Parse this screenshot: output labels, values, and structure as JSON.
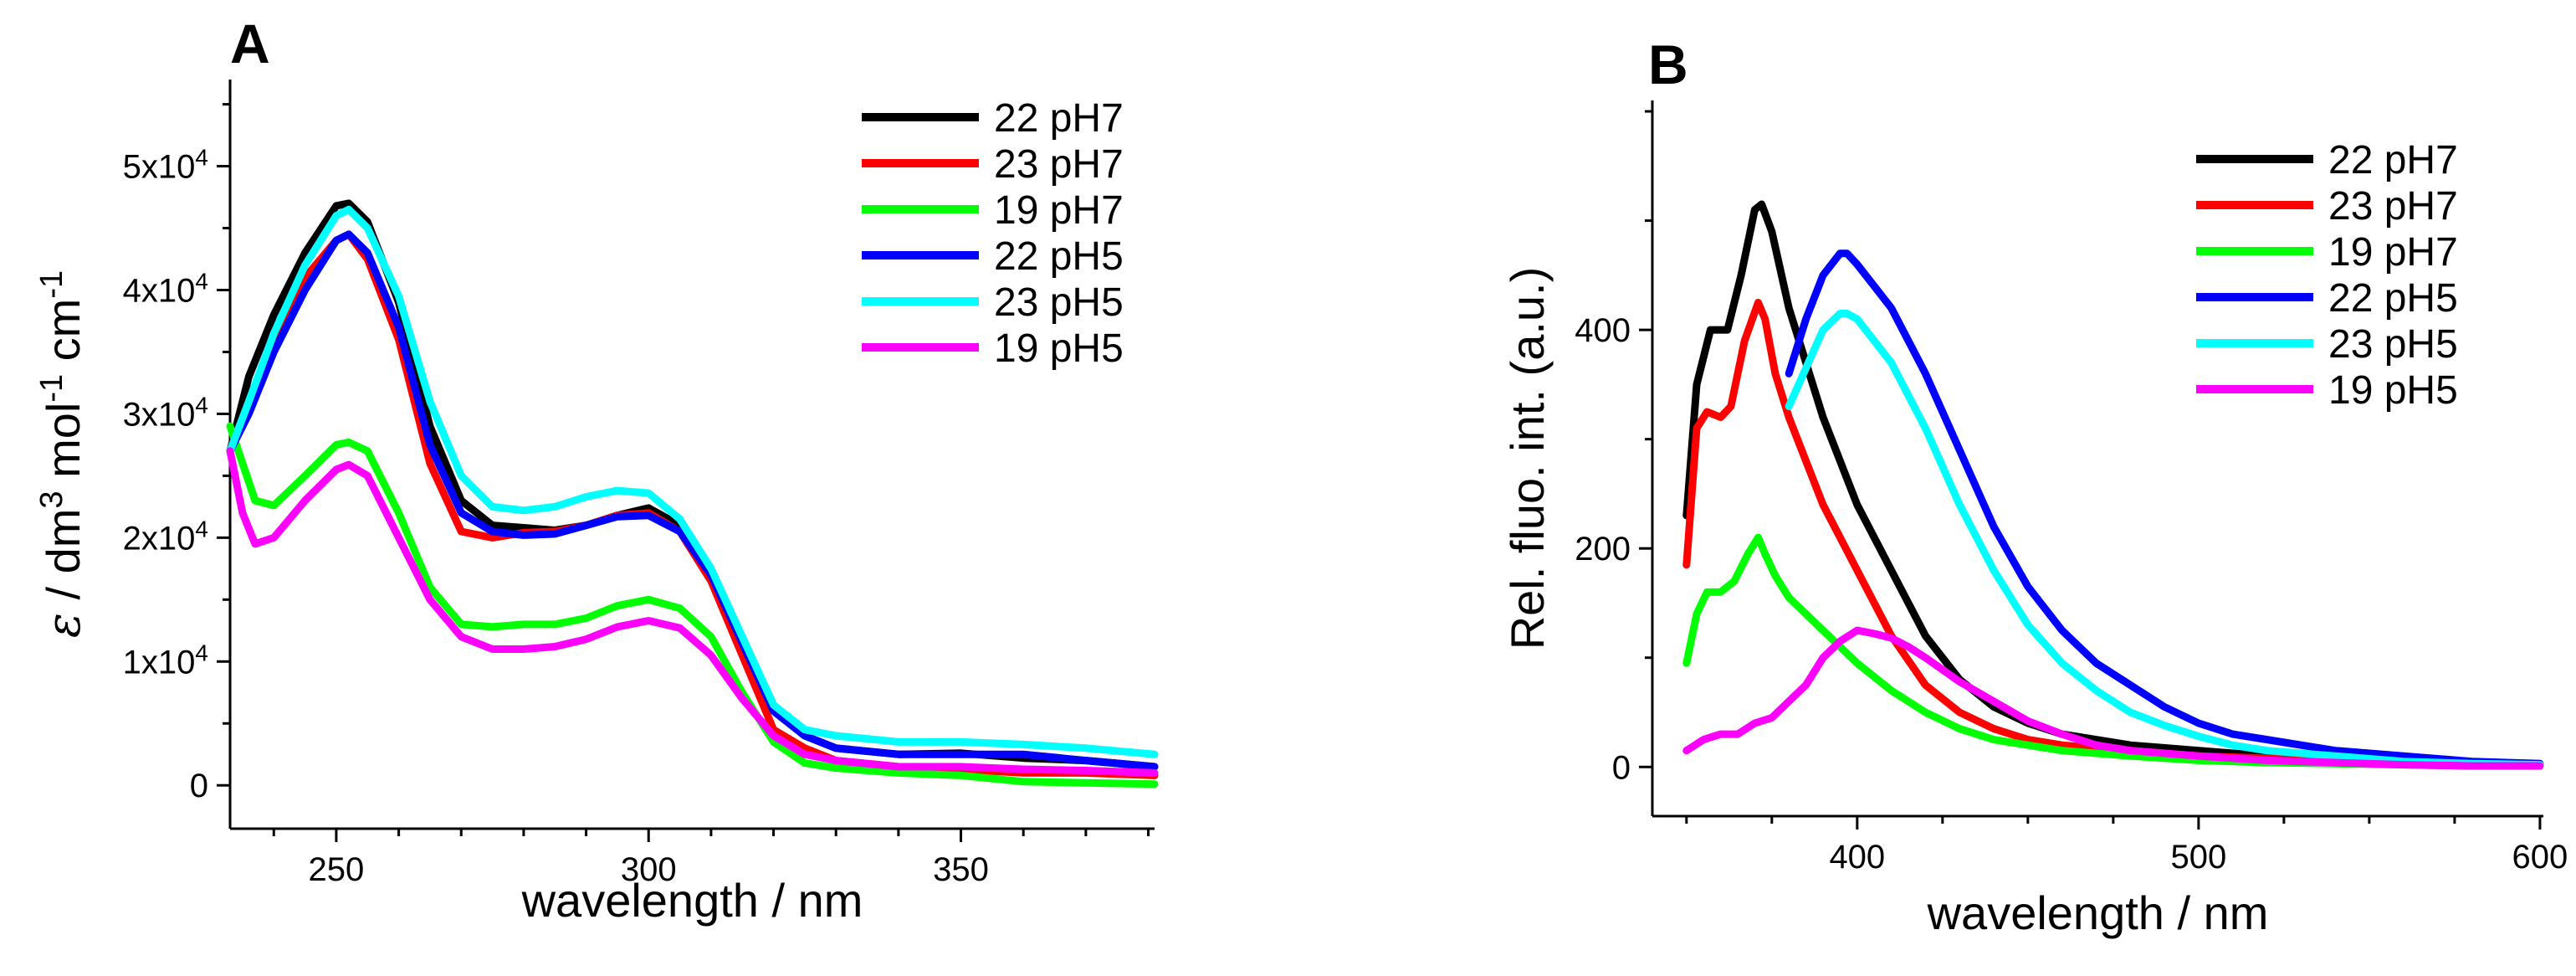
{
  "chart_data": [
    {
      "id": "A",
      "type": "line",
      "panel_label": "A",
      "xlabel": "wavelength / nm",
      "ylabel_parts": [
        "ε",
        " / dm",
        "3",
        " mol",
        "-1",
        " cm",
        "-1"
      ],
      "xlim": [
        233,
        381
      ],
      "ylim": [
        -3500,
        57000
      ],
      "xticks": [
        250,
        300,
        350
      ],
      "yticks": [
        {
          "value": 0,
          "label": "0"
        },
        {
          "value": 10000,
          "label": "1x10",
          "sup": "4"
        },
        {
          "value": 20000,
          "label": "2x10",
          "sup": "4"
        },
        {
          "value": 30000,
          "label": "3x10",
          "sup": "4"
        },
        {
          "value": 40000,
          "label": "4x10",
          "sup": "4"
        },
        {
          "value": 50000,
          "label": "5x10",
          "sup": "4"
        }
      ],
      "legend_position": "top-right",
      "series": [
        {
          "name": "22 pH7",
          "color": "#000000",
          "x": [
            233,
            236,
            240,
            245,
            250,
            252,
            255,
            260,
            265,
            270,
            275,
            280,
            285,
            290,
            295,
            300,
            305,
            310,
            315,
            320,
            325,
            330,
            340,
            350,
            360,
            370,
            381
          ],
          "y": [
            27000,
            33000,
            38000,
            43000,
            46800,
            47000,
            45500,
            39000,
            29000,
            23000,
            21000,
            20800,
            20600,
            21000,
            21800,
            22400,
            21000,
            17000,
            11500,
            6000,
            4000,
            3000,
            2500,
            2600,
            2200,
            2000,
            1500
          ]
        },
        {
          "name": "23 pH7",
          "color": "#ff0000",
          "x": [
            233,
            236,
            240,
            245,
            250,
            252,
            255,
            260,
            265,
            270,
            275,
            280,
            285,
            290,
            295,
            300,
            305,
            310,
            315,
            320,
            325,
            330,
            340,
            350,
            360,
            370,
            381
          ],
          "y": [
            27000,
            31000,
            36000,
            41000,
            44000,
            44500,
            42500,
            36000,
            26000,
            20500,
            20000,
            20400,
            20500,
            21000,
            21800,
            22000,
            20500,
            16500,
            10500,
            4500,
            3000,
            2000,
            1500,
            1300,
            1000,
            1000,
            800
          ]
        },
        {
          "name": "19 pH7",
          "color": "#00ff00",
          "x": [
            233,
            235,
            237,
            240,
            245,
            250,
            252,
            255,
            260,
            265,
            270,
            275,
            280,
            285,
            290,
            295,
            300,
            305,
            310,
            315,
            320,
            325,
            330,
            340,
            350,
            360,
            370,
            381
          ],
          "y": [
            29000,
            26000,
            23000,
            22600,
            25000,
            27500,
            27700,
            27000,
            22000,
            16000,
            13000,
            12800,
            13000,
            13000,
            13500,
            14500,
            15000,
            14300,
            12000,
            7500,
            3500,
            1800,
            1400,
            1000,
            800,
            300,
            200,
            100
          ]
        },
        {
          "name": "22 pH5",
          "color": "#0000ff",
          "x": [
            233,
            236,
            240,
            245,
            250,
            252,
            255,
            260,
            265,
            270,
            275,
            280,
            285,
            290,
            295,
            300,
            305,
            310,
            315,
            320,
            325,
            330,
            340,
            350,
            360,
            370,
            381
          ],
          "y": [
            27000,
            30000,
            35000,
            40000,
            44000,
            44500,
            43000,
            37000,
            27500,
            22000,
            20500,
            20200,
            20300,
            21000,
            21700,
            21800,
            20500,
            17000,
            11500,
            6000,
            4000,
            3000,
            2500,
            2500,
            2500,
            2000,
            1500
          ]
        },
        {
          "name": "23 pH5",
          "color": "#00ffff",
          "x": [
            233,
            236,
            240,
            245,
            250,
            252,
            255,
            260,
            265,
            270,
            275,
            280,
            285,
            290,
            295,
            300,
            305,
            310,
            315,
            320,
            325,
            330,
            340,
            350,
            360,
            370,
            381
          ],
          "y": [
            27000,
            31000,
            36500,
            42000,
            46000,
            46500,
            45000,
            39500,
            31000,
            25000,
            22500,
            22200,
            22500,
            23300,
            23800,
            23600,
            21500,
            17500,
            12000,
            6500,
            4500,
            4000,
            3500,
            3500,
            3300,
            3000,
            2500
          ]
        },
        {
          "name": "19 pH5",
          "color": "#ff00ff",
          "x": [
            233,
            235,
            237,
            240,
            245,
            250,
            252,
            255,
            260,
            265,
            270,
            275,
            280,
            285,
            290,
            295,
            300,
            305,
            310,
            315,
            320,
            325,
            330,
            340,
            350,
            360,
            370,
            381
          ],
          "y": [
            27000,
            22000,
            19500,
            20000,
            23000,
            25500,
            25900,
            25000,
            20000,
            15000,
            12000,
            11000,
            11000,
            11200,
            11800,
            12800,
            13300,
            12700,
            10500,
            7000,
            4000,
            2500,
            2000,
            1500,
            1500,
            1300,
            1200,
            1000
          ]
        }
      ]
    },
    {
      "id": "B",
      "type": "line",
      "panel_label": "B",
      "xlabel": "wavelength / nm",
      "ylabel": "Rel. fluo. int. (a.u.)",
      "xlim": [
        340,
        601
      ],
      "ylim": [
        -45,
        610
      ],
      "xticks": [
        400,
        500,
        600
      ],
      "yticks": [
        {
          "value": 0,
          "label": "0"
        },
        {
          "value": 200,
          "label": "200"
        },
        {
          "value": 400,
          "label": "400"
        }
      ],
      "legend_position": "top-right",
      "series": [
        {
          "name": "22 pH7",
          "color": "#000000",
          "x": [
            350,
            353,
            357,
            362,
            366,
            370,
            372,
            375,
            380,
            385,
            390,
            395,
            400,
            410,
            420,
            430,
            440,
            450,
            460,
            480,
            500,
            520,
            540,
            560,
            580,
            600
          ],
          "y": [
            230,
            350,
            400,
            400,
            450,
            510,
            515,
            490,
            420,
            370,
            320,
            280,
            240,
            180,
            120,
            80,
            55,
            40,
            30,
            20,
            15,
            10,
            8,
            5,
            3,
            2
          ]
        },
        {
          "name": "23 pH7",
          "color": "#ff0000",
          "x": [
            350,
            353,
            356,
            360,
            363,
            367,
            371,
            373,
            376,
            380,
            385,
            390,
            395,
            400,
            410,
            420,
            430,
            440,
            450,
            460,
            480,
            500,
            520,
            540,
            560,
            580,
            600
          ],
          "y": [
            185,
            310,
            325,
            320,
            330,
            390,
            425,
            410,
            360,
            320,
            280,
            240,
            210,
            180,
            120,
            75,
            50,
            35,
            25,
            20,
            15,
            10,
            8,
            5,
            3,
            2,
            1
          ]
        },
        {
          "name": "19 pH7",
          "color": "#00ff00",
          "x": [
            350,
            353,
            356,
            360,
            364,
            368,
            371,
            373,
            376,
            380,
            385,
            390,
            395,
            400,
            410,
            420,
            430,
            440,
            450,
            460,
            480,
            500,
            520,
            540,
            560,
            580,
            600
          ],
          "y": [
            95,
            140,
            160,
            160,
            170,
            195,
            210,
            195,
            175,
            155,
            140,
            125,
            110,
            95,
            70,
            50,
            35,
            25,
            20,
            15,
            10,
            6,
            4,
            3,
            2,
            1,
            1
          ]
        },
        {
          "name": "22 pH5",
          "color": "#0000ff",
          "x": [
            380,
            385,
            390,
            395,
            397,
            400,
            405,
            410,
            420,
            430,
            440,
            450,
            460,
            470,
            480,
            490,
            500,
            510,
            520,
            540,
            560,
            580,
            600
          ],
          "y": [
            360,
            410,
            450,
            470,
            470,
            460,
            440,
            420,
            360,
            290,
            220,
            165,
            125,
            95,
            75,
            55,
            40,
            30,
            25,
            15,
            10,
            5,
            3
          ]
        },
        {
          "name": "23 pH5",
          "color": "#00ffff",
          "x": [
            380,
            385,
            390,
            395,
            397,
            400,
            405,
            410,
            420,
            430,
            440,
            450,
            460,
            470,
            480,
            490,
            500,
            510,
            520,
            540,
            560,
            580,
            600
          ],
          "y": [
            330,
            365,
            400,
            415,
            415,
            410,
            390,
            370,
            310,
            240,
            180,
            130,
            95,
            70,
            50,
            38,
            28,
            20,
            15,
            10,
            5,
            3,
            2
          ]
        },
        {
          "name": "19 pH5",
          "color": "#ff00ff",
          "x": [
            350,
            355,
            360,
            365,
            370,
            375,
            380,
            385,
            390,
            395,
            400,
            405,
            410,
            415,
            420,
            430,
            440,
            450,
            460,
            470,
            480,
            500,
            520,
            540,
            560,
            580,
            600
          ],
          "y": [
            15,
            25,
            30,
            30,
            40,
            45,
            60,
            75,
            100,
            115,
            125,
            122,
            118,
            110,
            100,
            78,
            60,
            42,
            30,
            20,
            15,
            10,
            6,
            4,
            2,
            1,
            1
          ]
        }
      ]
    }
  ]
}
